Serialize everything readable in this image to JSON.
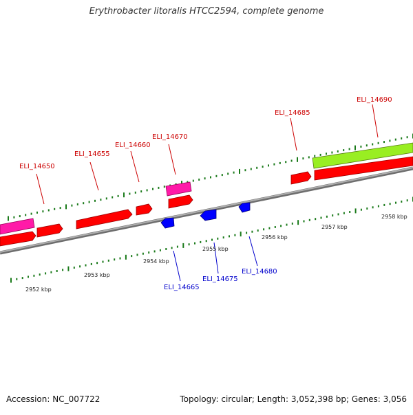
{
  "title": "Erythrobacter litoralis HTCC2594, complete genome",
  "footer": {
    "accession": "Accession: NC_007722",
    "summary": "Topology: circular; Length: 3,052,398 bp; Genes: 3,056"
  },
  "colors": {
    "backbone": "#8a8a8a",
    "tick": "#1a7a1a",
    "forward_gene": "#ff0000",
    "reverse_gene": "#0000ff",
    "pink_gene": "#ff1aa8",
    "green_gene": "#99ee22",
    "forward_label": "#cc0000",
    "reverse_label": "#0000cc"
  },
  "scale": {
    "labels": [
      "2952 kbp",
      "2953 kbp",
      "2954 kbp",
      "2955 kbp",
      "2956 kbp",
      "2957 kbp",
      "2958 kbp"
    ]
  },
  "gene_labels": {
    "forward": [
      "ELI_14650",
      "ELI_14655",
      "ELI_14660",
      "ELI_14670",
      "ELI_14685",
      "ELI_14690"
    ],
    "reverse": [
      "ELI_14665",
      "ELI_14675",
      "ELI_14680"
    ]
  }
}
